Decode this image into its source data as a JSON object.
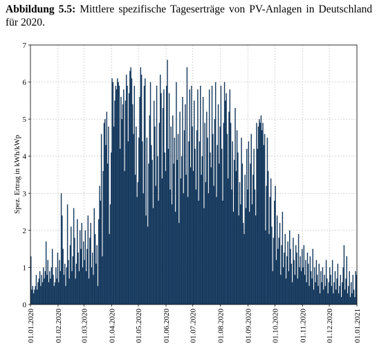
{
  "chart_data": {
    "type": "bar",
    "figure_label": "Abbildung 5.5:",
    "title": "Mittlere spezifische Tageserträge von PV-Anlagen in Deutschland für 2020.",
    "y_label": "Spez. Ertrag in kWh/kWp",
    "color": "#173a5e",
    "grid": true,
    "ylim": [
      0,
      7
    ],
    "yticks": [
      0,
      1,
      2,
      3,
      4,
      5,
      6,
      7
    ],
    "xlim": [
      "01.01.2020",
      "01.01.2021"
    ],
    "xticks": [
      "01.01.2020",
      "01.02.2020",
      "01.03.2020",
      "01.04.2020",
      "01.05.2020",
      "01.06.2020",
      "01.07.2020",
      "01.08.2020",
      "01.09.2020",
      "01.10.2020",
      "01.11.2020",
      "01.12.2020",
      "01.01.2021"
    ],
    "x": [
      "01.01.2020",
      "02.01.2020",
      "03.01.2020",
      "04.01.2020",
      "05.01.2020",
      "06.01.2020",
      "07.01.2020",
      "08.01.2020",
      "09.01.2020",
      "10.01.2020",
      "11.01.2020",
      "12.01.2020",
      "13.01.2020",
      "14.01.2020",
      "15.01.2020",
      "16.01.2020",
      "17.01.2020",
      "18.01.2020",
      "19.01.2020",
      "20.01.2020",
      "21.01.2020",
      "22.01.2020",
      "23.01.2020",
      "24.01.2020",
      "25.01.2020",
      "26.01.2020",
      "27.01.2020",
      "28.01.2020",
      "29.01.2020",
      "30.01.2020",
      "31.01.2020",
      "01.02.2020",
      "02.02.2020",
      "03.02.2020",
      "04.02.2020",
      "05.02.2020",
      "06.02.2020",
      "07.02.2020",
      "08.02.2020",
      "09.02.2020",
      "10.02.2020",
      "11.02.2020",
      "12.02.2020",
      "13.02.2020",
      "14.02.2020",
      "15.02.2020",
      "16.02.2020",
      "17.02.2020",
      "18.02.2020",
      "19.02.2020",
      "20.02.2020",
      "21.02.2020",
      "22.02.2020",
      "23.02.2020",
      "24.02.2020",
      "25.02.2020",
      "26.02.2020",
      "27.02.2020",
      "28.02.2020",
      "29.02.2020",
      "01.03.2020",
      "02.03.2020",
      "03.03.2020",
      "04.03.2020",
      "05.03.2020",
      "06.03.2020",
      "07.03.2020",
      "08.03.2020",
      "09.03.2020",
      "10.03.2020",
      "11.03.2020",
      "12.03.2020",
      "13.03.2020",
      "14.03.2020",
      "15.03.2020",
      "16.03.2020",
      "17.03.2020",
      "18.03.2020",
      "19.03.2020",
      "20.03.2020",
      "21.03.2020",
      "22.03.2020",
      "23.03.2020",
      "24.03.2020",
      "25.03.2020",
      "26.03.2020",
      "27.03.2020",
      "28.03.2020",
      "29.03.2020",
      "30.03.2020",
      "31.03.2020",
      "01.04.2020",
      "02.04.2020",
      "03.04.2020",
      "04.04.2020",
      "05.04.2020",
      "06.04.2020",
      "07.04.2020",
      "08.04.2020",
      "09.04.2020",
      "10.04.2020",
      "11.04.2020",
      "12.04.2020",
      "13.04.2020",
      "14.04.2020",
      "15.04.2020",
      "16.04.2020",
      "17.04.2020",
      "18.04.2020",
      "19.04.2020",
      "20.04.2020",
      "21.04.2020",
      "22.04.2020",
      "23.04.2020",
      "24.04.2020",
      "25.04.2020",
      "26.04.2020",
      "27.04.2020",
      "28.04.2020",
      "29.04.2020",
      "30.04.2020",
      "01.05.2020",
      "02.05.2020",
      "03.05.2020",
      "04.05.2020",
      "05.05.2020",
      "06.05.2020",
      "07.05.2020",
      "08.05.2020",
      "09.05.2020",
      "10.05.2020",
      "11.05.2020",
      "12.05.2020",
      "13.05.2020",
      "14.05.2020",
      "15.05.2020",
      "16.05.2020",
      "17.05.2020",
      "18.05.2020",
      "19.05.2020",
      "20.05.2020",
      "21.05.2020",
      "22.05.2020",
      "23.05.2020",
      "24.05.2020",
      "25.05.2020",
      "26.05.2020",
      "27.05.2020",
      "28.05.2020",
      "29.05.2020",
      "30.05.2020",
      "31.05.2020",
      "01.06.2020",
      "02.06.2020",
      "03.06.2020",
      "04.06.2020",
      "05.06.2020",
      "06.06.2020",
      "07.06.2020",
      "08.06.2020",
      "09.06.2020",
      "10.06.2020",
      "11.06.2020",
      "12.06.2020",
      "13.06.2020",
      "14.06.2020",
      "15.06.2020",
      "16.06.2020",
      "17.06.2020",
      "18.06.2020",
      "19.06.2020",
      "20.06.2020",
      "21.06.2020",
      "22.06.2020",
      "23.06.2020",
      "24.06.2020",
      "25.06.2020",
      "26.06.2020",
      "27.06.2020",
      "28.06.2020",
      "29.06.2020",
      "30.06.2020",
      "01.07.2020",
      "02.07.2020",
      "03.07.2020",
      "04.07.2020",
      "05.07.2020",
      "06.07.2020",
      "07.07.2020",
      "08.07.2020",
      "09.07.2020",
      "10.07.2020",
      "11.07.2020",
      "12.07.2020",
      "13.07.2020",
      "14.07.2020",
      "15.07.2020",
      "16.07.2020",
      "17.07.2020",
      "18.07.2020",
      "19.07.2020",
      "20.07.2020",
      "21.07.2020",
      "22.07.2020",
      "23.07.2020",
      "24.07.2020",
      "25.07.2020",
      "26.07.2020",
      "27.07.2020",
      "28.07.2020",
      "29.07.2020",
      "30.07.2020",
      "31.07.2020",
      "01.08.2020",
      "02.08.2020",
      "03.08.2020",
      "04.08.2020",
      "05.08.2020",
      "06.08.2020",
      "07.08.2020",
      "08.08.2020",
      "09.08.2020",
      "10.08.2020",
      "11.08.2020",
      "12.08.2020",
      "13.08.2020",
      "14.08.2020",
      "15.08.2020",
      "16.08.2020",
      "17.08.2020",
      "18.08.2020",
      "19.08.2020",
      "20.08.2020",
      "21.08.2020",
      "22.08.2020",
      "23.08.2020",
      "24.08.2020",
      "25.08.2020",
      "26.08.2020",
      "27.08.2020",
      "28.08.2020",
      "29.08.2020",
      "30.08.2020",
      "31.08.2020",
      "01.09.2020",
      "02.09.2020",
      "03.09.2020",
      "04.09.2020",
      "05.09.2020",
      "06.09.2020",
      "07.09.2020",
      "08.09.2020",
      "09.09.2020",
      "10.09.2020",
      "11.09.2020",
      "12.09.2020",
      "13.09.2020",
      "14.09.2020",
      "15.09.2020",
      "16.09.2020",
      "17.09.2020",
      "18.09.2020",
      "19.09.2020",
      "20.09.2020",
      "21.09.2020",
      "22.09.2020",
      "23.09.2020",
      "24.09.2020",
      "25.09.2020",
      "26.09.2020",
      "27.09.2020",
      "28.09.2020",
      "29.09.2020",
      "30.09.2020",
      "01.10.2020",
      "02.10.2020",
      "03.10.2020",
      "04.10.2020",
      "05.10.2020",
      "06.10.2020",
      "07.10.2020",
      "08.10.2020",
      "09.10.2020",
      "10.10.2020",
      "11.10.2020",
      "12.10.2020",
      "13.10.2020",
      "14.10.2020",
      "15.10.2020",
      "16.10.2020",
      "17.10.2020",
      "18.10.2020",
      "19.10.2020",
      "20.10.2020",
      "21.10.2020",
      "22.10.2020",
      "23.10.2020",
      "24.10.2020",
      "25.10.2020",
      "26.10.2020",
      "27.10.2020",
      "28.10.2020",
      "29.10.2020",
      "30.10.2020",
      "31.10.2020",
      "01.11.2020",
      "02.11.2020",
      "03.11.2020",
      "04.11.2020",
      "05.11.2020",
      "06.11.2020",
      "07.11.2020",
      "08.11.2020",
      "09.11.2020",
      "10.11.2020",
      "11.11.2020",
      "12.11.2020",
      "13.11.2020",
      "14.11.2020",
      "15.11.2020",
      "16.11.2020",
      "17.11.2020",
      "18.11.2020",
      "19.11.2020",
      "20.11.2020",
      "21.11.2020",
      "22.11.2020",
      "23.11.2020",
      "24.11.2020",
      "25.11.2020",
      "26.11.2020",
      "27.11.2020",
      "28.11.2020",
      "29.11.2020",
      "30.11.2020",
      "01.12.2020",
      "02.12.2020",
      "03.12.2020",
      "04.12.2020",
      "05.12.2020",
      "06.12.2020",
      "07.12.2020",
      "08.12.2020",
      "09.12.2020",
      "10.12.2020",
      "11.12.2020",
      "12.12.2020",
      "13.12.2020",
      "14.12.2020",
      "15.12.2020",
      "16.12.2020",
      "17.12.2020",
      "18.12.2020",
      "19.12.2020",
      "20.12.2020",
      "21.12.2020",
      "22.12.2020",
      "23.12.2020",
      "24.12.2020",
      "25.12.2020",
      "26.12.2020",
      "27.12.2020",
      "28.12.2020",
      "29.12.2020",
      "30.12.2020",
      "31.12.2020"
    ],
    "values": [
      1.3,
      0.4,
      0.5,
      0.3,
      0.4,
      0.5,
      0.8,
      0.4,
      0.6,
      0.7,
      0.9,
      0.5,
      0.8,
      0.6,
      1.0,
      0.7,
      0.9,
      1.7,
      0.8,
      1.2,
      0.6,
      0.9,
      0.7,
      1.0,
      1.5,
      0.8,
      0.5,
      0.6,
      1.0,
      0.7,
      1.4,
      0.6,
      1.2,
      0.9,
      3.0,
      2.4,
      1.5,
      0.8,
      1.1,
      0.5,
      1.0,
      2.7,
      1.2,
      0.7,
      1.6,
      2.1,
      0.9,
      1.3,
      2.6,
      1.8,
      0.7,
      1.1,
      2.3,
      1.4,
      0.9,
      2.0,
      1.5,
      2.2,
      1.0,
      1.7,
      1.2,
      2.0,
      0.9,
      1.5,
      2.4,
      0.7,
      1.8,
      2.2,
      1.0,
      1.4,
      0.8,
      2.6,
      1.9,
      1.1,
      1.6,
      0.5,
      2.3,
      3.2,
      2.8,
      4.6,
      1.3,
      3.6,
      4.9,
      5.0,
      4.3,
      5.2,
      3.8,
      4.8,
      1.9,
      2.7,
      4.1,
      6.1,
      6.0,
      4.8,
      5.5,
      5.9,
      5.8,
      6.1,
      6.0,
      5.9,
      4.2,
      5.6,
      5.0,
      5.4,
      5.8,
      3.6,
      5.5,
      6.2,
      5.9,
      4.4,
      5.7,
      6.3,
      6.4,
      6.1,
      5.4,
      4.6,
      5.9,
      3.5,
      4.8,
      2.9,
      3.3,
      4.5,
      5.6,
      6.4,
      6.2,
      4.4,
      3.0,
      5.9,
      6.1,
      2.4,
      4.5,
      2.1,
      3.8,
      5.1,
      6.0,
      4.3,
      3.9,
      2.6,
      5.5,
      4.8,
      3.2,
      5.9,
      4.0,
      2.8,
      4.9,
      6.2,
      5.7,
      3.4,
      5.3,
      5.8,
      4.1,
      3.6,
      5.9,
      6.6,
      4.2,
      5.7,
      3.1,
      4.8,
      2.7,
      5.1,
      3.8,
      4.5,
      2.5,
      6.0,
      3.9,
      4.6,
      2.2,
      5.2,
      3.4,
      4.0,
      5.6,
      3.0,
      4.7,
      5.4,
      3.5,
      6.4,
      2.9,
      4.4,
      5.8,
      3.7,
      5.9,
      4.8,
      3.6,
      5.5,
      4.2,
      3.1,
      4.7,
      5.8,
      2.8,
      4.4,
      5.9,
      3.5,
      4.0,
      5.6,
      2.6,
      4.9,
      3.3,
      5.2,
      4.5,
      3.0,
      5.8,
      4.1,
      3.7,
      5.9,
      4.6,
      3.2,
      5.0,
      6.0,
      2.9,
      4.3,
      5.4,
      3.8,
      4.8,
      5.9,
      4.2,
      2.8,
      4.9,
      6.0,
      5.5,
      5.7,
      4.6,
      3.4,
      5.2,
      5.8,
      4.9,
      3.1,
      4.4,
      2.5,
      3.9,
      5.3,
      3.6,
      4.7,
      4.1,
      2.4,
      3.3,
      2.7,
      4.5,
      3.8,
      2.2,
      1.9,
      3.5,
      2.6,
      4.2,
      3.1,
      4.4,
      2.5,
      3.8,
      4.6,
      2.7,
      3.5,
      4.2,
      3.1,
      2.4,
      4.9,
      4.2,
      4.8,
      5.0,
      4.9,
      5.1,
      4.7,
      4.9,
      4.3,
      4.6,
      2.0,
      3.2,
      4.5,
      3.6,
      1.9,
      2.9,
      3.4,
      2.1,
      0.9,
      1.8,
      2.8,
      3.2,
      1.2,
      2.4,
      1.5,
      1.8,
      2.2,
      0.8,
      1.6,
      2.5,
      1.0,
      1.4,
      1.9,
      0.7,
      1.3,
      1.7,
      0.9,
      2.0,
      1.5,
      1.1,
      0.6,
      1.8,
      1.2,
      0.8,
      1.6,
      1.4,
      0.7,
      1.9,
      1.0,
      1.3,
      0.9,
      1.5,
      1.0,
      1.6,
      0.8,
      1.2,
      0.6,
      1.4,
      1.1,
      0.5,
      1.3,
      0.9,
      0.7,
      1.5,
      0.4,
      1.0,
      0.6,
      1.2,
      0.8,
      0.5,
      1.1,
      0.3,
      0.9,
      0.6,
      1.0,
      0.4,
      0.8,
      0.5,
      1.2,
      0.7,
      0.3,
      0.6,
      1.0,
      0.8,
      0.5,
      1.2,
      0.3,
      0.6,
      0.9,
      0.4,
      0.7,
      1.1,
      0.3,
      0.5,
      0.8,
      0.2,
      0.6,
      1.0,
      1.6,
      0.4,
      0.7,
      1.3,
      0.3,
      0.5,
      0.9,
      0.2,
      0.6,
      0.3,
      0.8,
      0.4,
      0.2,
      0.9,
      0.8
    ]
  }
}
